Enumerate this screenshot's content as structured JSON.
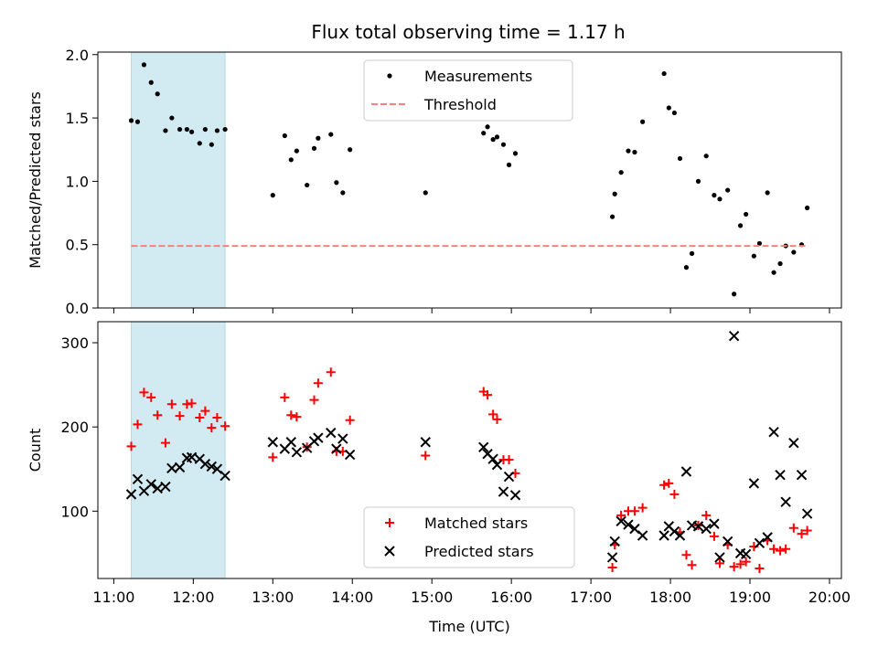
{
  "figure": {
    "title": "Flux total observing time = 1.17 h"
  },
  "chart_data": [
    {
      "type": "scatter",
      "title": "Flux total observing time = 1.17 h",
      "ylabel": "Matched/Predicted stars",
      "xlabel": "",
      "xlim": [
        10.8,
        20.15
      ],
      "ylim": [
        0,
        2.02
      ],
      "yticks": [
        0.0,
        0.5,
        1.0,
        1.5,
        2.0
      ],
      "ytick_labels": [
        "0.0",
        "0.5",
        "1.0",
        "1.5",
        "2.0"
      ],
      "xticks": [
        11,
        12,
        13,
        14,
        15,
        16,
        17,
        18,
        19,
        20
      ],
      "shaded_interval": [
        11.22,
        12.4
      ],
      "shade_color": "#add8e6",
      "grid": false,
      "legend_position": "upper-center",
      "series": [
        {
          "name": "Measurements",
          "marker": "dot",
          "color": "#000000",
          "x": [
            11.22,
            11.3,
            11.38,
            11.47,
            11.55,
            11.65,
            11.73,
            11.83,
            11.92,
            11.98,
            12.08,
            12.15,
            12.23,
            12.3,
            12.4,
            13.0,
            13.15,
            13.23,
            13.3,
            13.43,
            13.52,
            13.57,
            13.73,
            13.8,
            13.88,
            13.97,
            14.92,
            15.65,
            15.7,
            15.77,
            15.82,
            15.9,
            15.97,
            16.05,
            17.27,
            17.3,
            17.38,
            17.47,
            17.55,
            17.65,
            17.92,
            17.98,
            18.05,
            18.12,
            18.2,
            18.27,
            18.35,
            18.45,
            18.55,
            18.62,
            18.72,
            18.8,
            18.88,
            18.95,
            19.05,
            19.12,
            19.22,
            19.3,
            19.38,
            19.45,
            19.55,
            19.65,
            19.72
          ],
          "y": [
            1.48,
            1.47,
            1.92,
            1.78,
            1.69,
            1.4,
            1.5,
            1.41,
            1.41,
            1.39,
            1.3,
            1.41,
            1.29,
            1.4,
            1.41,
            0.89,
            1.36,
            1.17,
            1.24,
            0.97,
            1.26,
            1.34,
            1.37,
            0.99,
            0.91,
            1.25,
            0.91,
            1.38,
            1.43,
            1.33,
            1.35,
            1.29,
            1.13,
            1.22,
            0.72,
            0.9,
            1.07,
            1.24,
            1.23,
            1.47,
            1.85,
            1.58,
            1.54,
            1.18,
            0.32,
            0.43,
            1.0,
            1.2,
            0.89,
            0.86,
            0.93,
            0.11,
            0.65,
            0.74,
            0.41,
            0.51,
            0.91,
            0.28,
            0.35,
            0.49,
            0.44,
            0.5,
            0.79
          ]
        },
        {
          "name": "Threshold",
          "marker": "dashed-line",
          "color": "#ff7f7f",
          "x": [
            11.22,
            19.72
          ],
          "y": [
            0.49,
            0.49
          ]
        }
      ]
    },
    {
      "type": "scatter",
      "title": "",
      "ylabel": "Count",
      "xlabel": "Time (UTC)",
      "xlim": [
        10.8,
        20.15
      ],
      "ylim": [
        20,
        325
      ],
      "yticks": [
        100,
        200,
        300
      ],
      "ytick_labels": [
        "100",
        "200",
        "300"
      ],
      "xticks": [
        11,
        12,
        13,
        14,
        15,
        16,
        17,
        18,
        19,
        20
      ],
      "xtick_labels": [
        "11:00",
        "12:00",
        "13:00",
        "14:00",
        "15:00",
        "16:00",
        "17:00",
        "18:00",
        "19:00",
        "20:00"
      ],
      "shaded_interval": [
        11.22,
        12.4
      ],
      "shade_color": "#add8e6",
      "grid": false,
      "legend_position": "lower-center",
      "series": [
        {
          "name": "Matched stars",
          "marker": "plus",
          "color": "#ff0000",
          "x": [
            11.22,
            11.3,
            11.38,
            11.47,
            11.55,
            11.65,
            11.73,
            11.83,
            11.92,
            11.98,
            12.08,
            12.15,
            12.23,
            12.3,
            12.4,
            13.0,
            13.15,
            13.23,
            13.3,
            13.43,
            13.52,
            13.57,
            13.73,
            13.8,
            13.88,
            13.97,
            14.92,
            15.65,
            15.7,
            15.77,
            15.82,
            15.9,
            15.97,
            16.05,
            17.27,
            17.3,
            17.38,
            17.47,
            17.55,
            17.65,
            17.92,
            17.98,
            18.05,
            18.12,
            18.2,
            18.27,
            18.35,
            18.45,
            18.55,
            18.62,
            18.72,
            18.8,
            18.88,
            18.95,
            19.05,
            19.12,
            19.22,
            19.3,
            19.38,
            19.45,
            19.55,
            19.65,
            19.72
          ],
          "y": [
            177,
            203,
            241,
            235,
            214,
            181,
            227,
            213,
            227,
            228,
            211,
            219,
            199,
            211,
            201,
            164,
            235,
            214,
            212,
            176,
            232,
            252,
            265,
            171,
            171,
            208,
            166,
            242,
            238,
            215,
            209,
            161,
            161,
            145,
            33,
            60,
            95,
            100,
            100,
            104,
            131,
            133,
            120,
            75,
            48,
            36,
            83,
            95,
            70,
            38,
            60,
            34,
            37,
            40,
            58,
            32,
            65,
            55,
            53,
            55,
            80,
            73,
            77
          ]
        },
        {
          "name": "Predicted stars",
          "marker": "x",
          "color": "#000000",
          "x": [
            11.22,
            11.3,
            11.38,
            11.47,
            11.55,
            11.65,
            11.73,
            11.83,
            11.92,
            11.98,
            12.08,
            12.15,
            12.23,
            12.3,
            12.4,
            13.0,
            13.15,
            13.23,
            13.3,
            13.43,
            13.52,
            13.57,
            13.73,
            13.8,
            13.88,
            13.97,
            14.92,
            15.65,
            15.7,
            15.77,
            15.82,
            15.9,
            15.97,
            16.05,
            17.27,
            17.3,
            17.38,
            17.47,
            17.55,
            17.65,
            17.92,
            17.98,
            18.05,
            18.12,
            18.2,
            18.27,
            18.35,
            18.45,
            18.55,
            18.62,
            18.72,
            18.8,
            18.88,
            18.95,
            19.05,
            19.12,
            19.22,
            19.3,
            19.38,
            19.45,
            19.55,
            19.65,
            19.72
          ],
          "y": [
            120,
            138,
            124,
            132,
            127,
            129,
            151,
            152,
            163,
            164,
            162,
            156,
            153,
            150,
            142,
            182,
            174,
            182,
            170,
            175,
            183,
            187,
            193,
            174,
            186,
            167,
            182,
            176,
            168,
            162,
            155,
            123,
            141,
            119,
            45,
            64,
            88,
            84,
            79,
            71,
            71,
            82,
            76,
            71,
            147,
            83,
            82,
            79,
            85,
            45,
            64,
            308,
            50,
            49,
            133,
            62,
            69,
            194,
            143,
            111,
            181,
            143,
            97
          ]
        }
      ]
    }
  ]
}
